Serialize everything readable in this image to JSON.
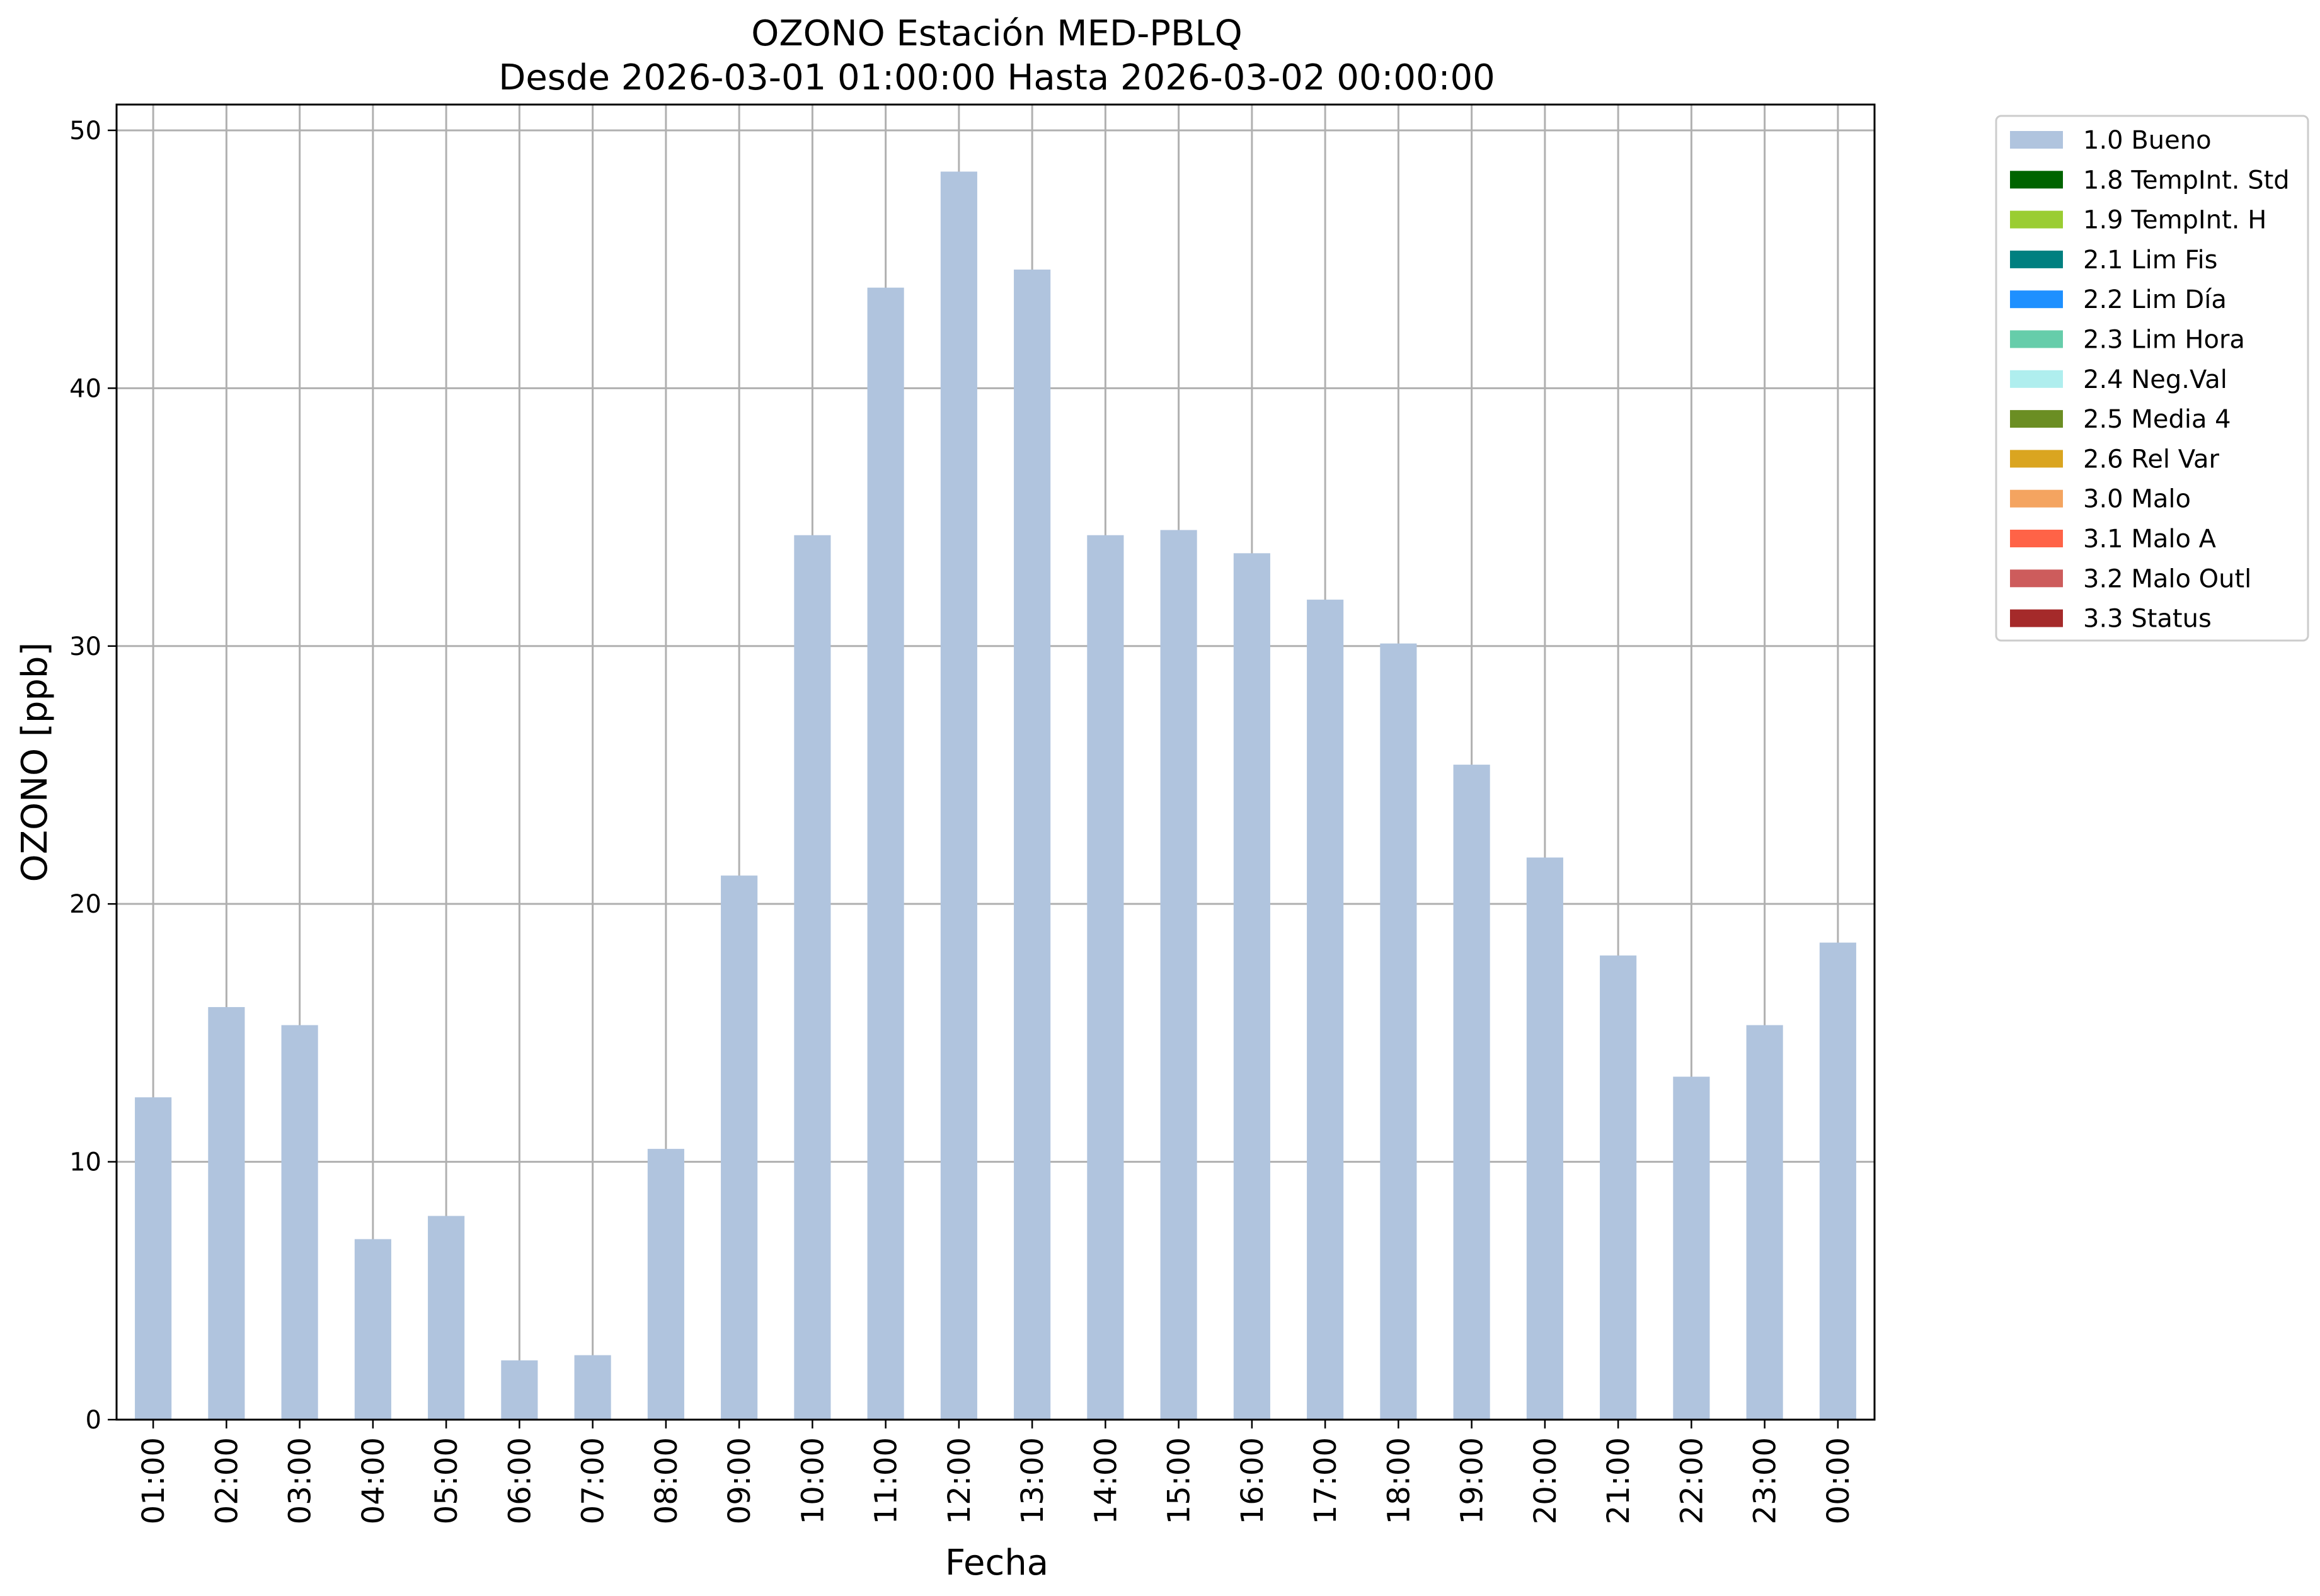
{
  "chart_data": {
    "type": "bar",
    "title": "OZONO Estación MED-PBLQ",
    "subtitle": "Desde 2026-03-01 01:00:00 Hasta 2026-03-02 00:00:00",
    "xlabel": "Fecha",
    "ylabel": "OZONO [ppb]",
    "ylim": [
      0,
      51
    ],
    "yticks": [
      "0",
      "10",
      "20",
      "30",
      "40",
      "50"
    ],
    "grid": true,
    "legend_position": "outside-top-right",
    "bar_color": "#b0c4de",
    "categories": [
      "01:00",
      "02:00",
      "03:00",
      "04:00",
      "05:00",
      "06:00",
      "07:00",
      "08:00",
      "09:00",
      "10:00",
      "11:00",
      "12:00",
      "13:00",
      "14:00",
      "15:00",
      "16:00",
      "17:00",
      "18:00",
      "19:00",
      "20:00",
      "21:00",
      "22:00",
      "23:00",
      "00:00"
    ],
    "series": [
      {
        "name": "1.0 Bueno",
        "values": [
          12.5,
          16.0,
          15.3,
          7.0,
          7.9,
          2.3,
          2.5,
          10.5,
          21.1,
          34.3,
          43.9,
          48.4,
          44.6,
          34.3,
          34.5,
          33.6,
          31.8,
          30.1,
          25.4,
          21.8,
          18.0,
          13.3,
          15.3,
          18.5
        ]
      }
    ],
    "legend": [
      {
        "label": "1.0 Bueno",
        "color": "#b0c4de"
      },
      {
        "label": "1.8 TempInt. Std",
        "color": "#006400"
      },
      {
        "label": "1.9 TempInt. H",
        "color": "#9acd32"
      },
      {
        "label": "2.1 Lim Fis",
        "color": "#008080"
      },
      {
        "label": "2.2 Lim Día",
        "color": "#1e90ff"
      },
      {
        "label": "2.3 Lim Hora",
        "color": "#66cdaa"
      },
      {
        "label": "2.4 Neg.Val",
        "color": "#afeeee"
      },
      {
        "label": "2.5 Media 4",
        "color": "#6b8e23"
      },
      {
        "label": "2.6 Rel Var",
        "color": "#daa520"
      },
      {
        "label": "3.0 Malo",
        "color": "#f4a460"
      },
      {
        "label": "3.1 Malo A",
        "color": "#ff6347"
      },
      {
        "label": "3.2 Malo Outl",
        "color": "#cd5c5c"
      },
      {
        "label": "3.3 Status",
        "color": "#a52a2a"
      }
    ]
  }
}
